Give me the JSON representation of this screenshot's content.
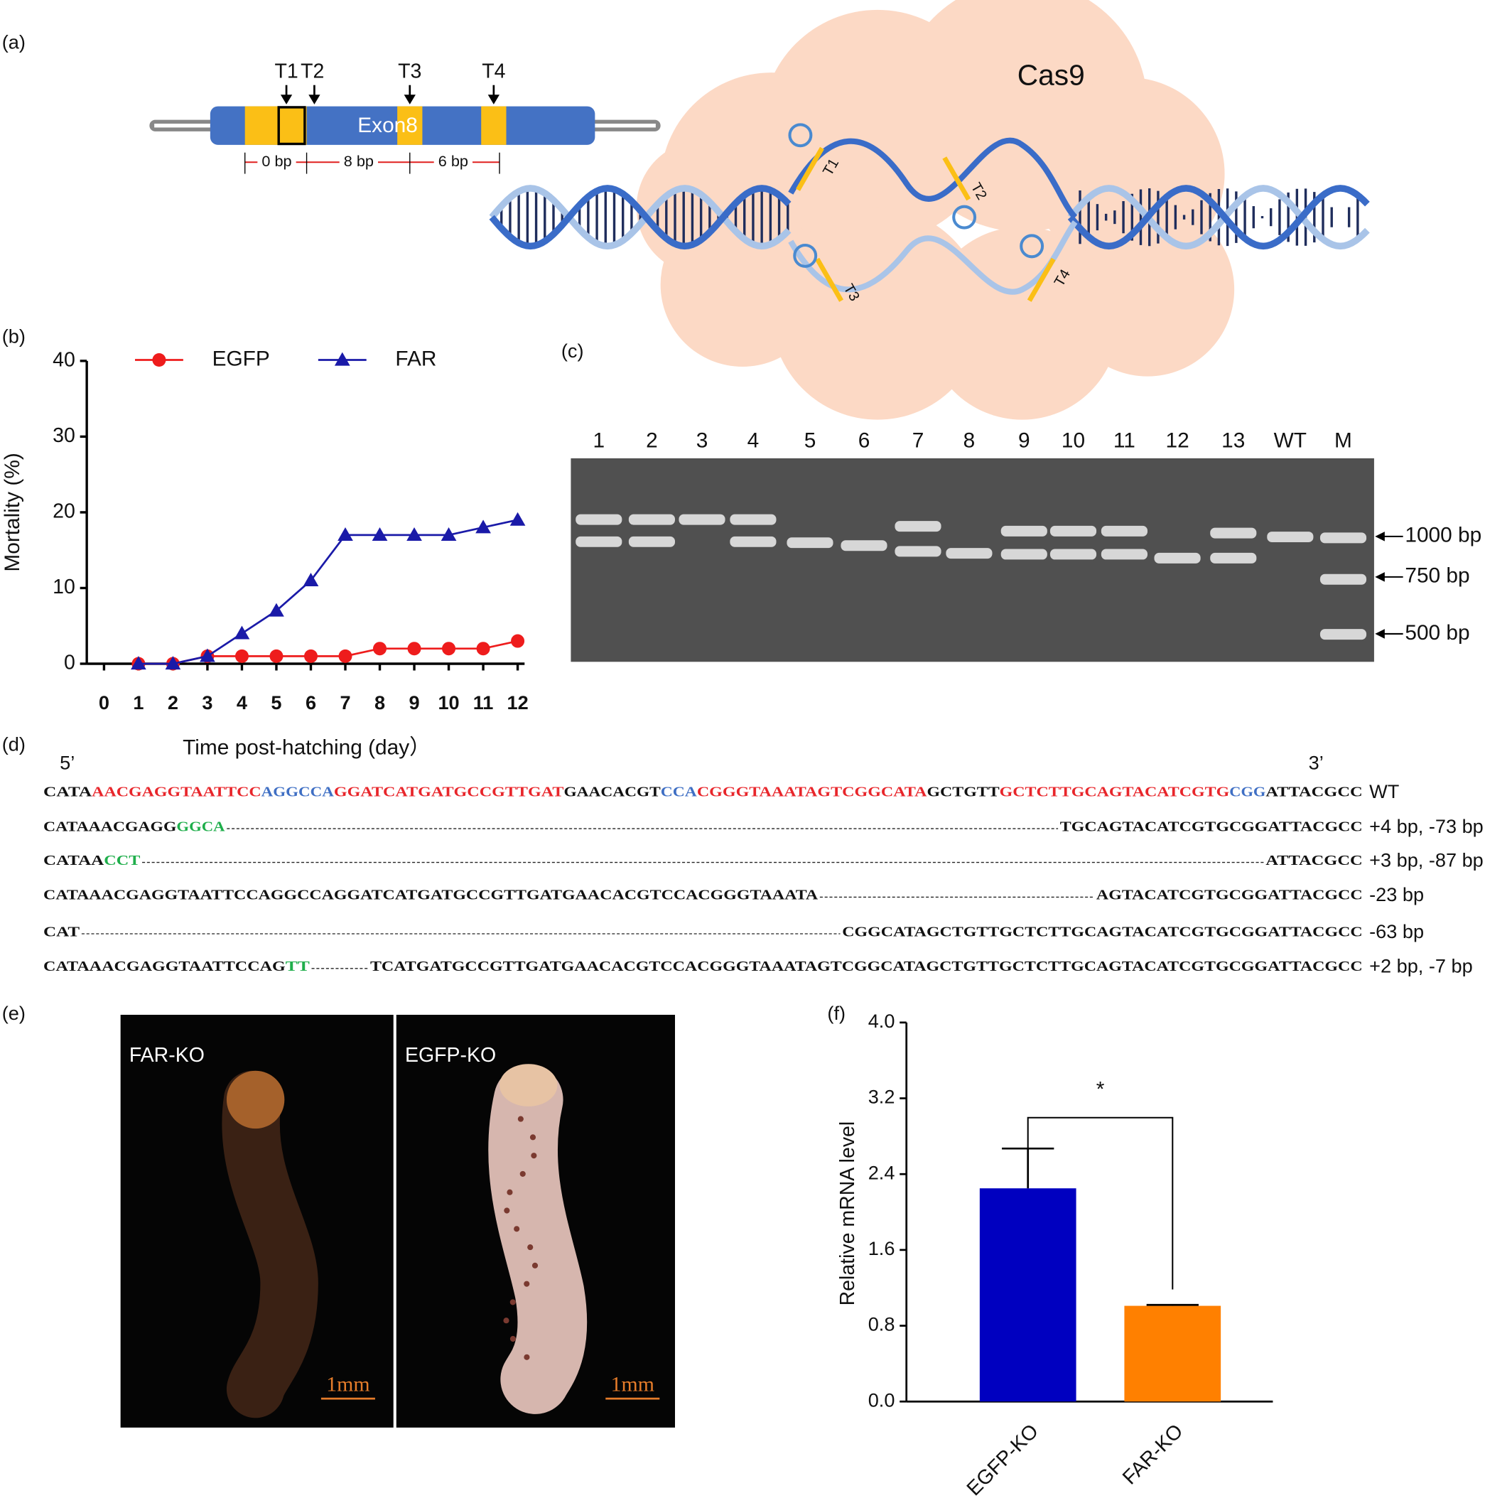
{
  "panel_labels": [
    "(a)",
    "(b)",
    "(c)",
    "(d)",
    "(e)",
    "(f)"
  ],
  "diagram": {
    "targets": [
      "T1",
      "T2",
      "T3",
      "T4"
    ],
    "exon": "Exon8",
    "spacings": [
      "0 bp",
      "8 bp",
      "6 bp"
    ],
    "protein": "Cas9",
    "guides": [
      "T1",
      "T2",
      "T3",
      "T4"
    ]
  },
  "gel": {
    "lanes": [
      "1",
      "2",
      "3",
      "4",
      "5",
      "6",
      "7",
      "8",
      "9",
      "10",
      "11",
      "12",
      "13",
      "WT",
      "M"
    ],
    "markers": [
      "1000 bp",
      "750 bp",
      "500 bp"
    ]
  },
  "sequences": {
    "five_prime": "5’",
    "three_prime": "3’",
    "rows": [
      {
        "left": [
          {
            "text": "CATA",
            "color": "#111111"
          },
          {
            "text": "AACGAGGTAATTCC",
            "color": "#e8262b"
          },
          {
            "text": "AGGCCA",
            "color": "#3f6fc4"
          },
          {
            "text": "GGATCATGATGCCGTTGAT",
            "color": "#e8262b"
          },
          {
            "text": "GAACACGT",
            "color": "#111111"
          },
          {
            "text": "CCA",
            "color": "#3f6fc4"
          },
          {
            "text": "CGGGTAAATAGTCGGCATA",
            "color": "#e8262b"
          },
          {
            "text": "GCTGTT",
            "color": "#111111"
          },
          {
            "text": "GCTCTTGCAGTACATCGTG",
            "color": "#e8262b"
          },
          {
            "text": "CGG",
            "color": "#3f6fc4"
          },
          {
            "text": "ATTACGCC",
            "color": "#111111"
          }
        ],
        "label": "WT"
      },
      {
        "left": [
          {
            "text": "CATAAACGAGG",
            "color": "#111111"
          },
          {
            "text": "GGCA",
            "color": "#1fae4b"
          }
        ],
        "right": [
          {
            "text": "TGCAGTACATCGTGCGGATTACGCC",
            "color": "#111111"
          }
        ],
        "label": "+4 bp, -73 bp"
      },
      {
        "left": [
          {
            "text": "CATAA",
            "color": "#111111"
          },
          {
            "text": "CCT",
            "color": "#1fae4b"
          }
        ],
        "right": [
          {
            "text": "ATTACGCC",
            "color": "#111111"
          }
        ],
        "label": "+3 bp, -87 bp"
      },
      {
        "left": [
          {
            "text": "CATAAACGAGGTAATTCCAGGCCAGGATCATGATGCCGTTGATGAACACGTCCACGGGTAAATA",
            "color": "#111111"
          }
        ],
        "right": [
          {
            "text": "AGTACATCGTGCGGATTACGCC",
            "color": "#111111"
          }
        ],
        "label": "-23 bp"
      },
      {
        "left": [
          {
            "text": "CAT",
            "color": "#111111"
          }
        ],
        "right": [
          {
            "text": "CGGCATAGCTGTTGCTCTTGCAGTACATCGTGCGGATTACGCC",
            "color": "#111111"
          }
        ],
        "label": "-63 bp"
      },
      {
        "left": [
          {
            "text": "CATAAACGAGGTAATTCCAG",
            "color": "#111111"
          },
          {
            "text": "TT",
            "color": "#1fae4b"
          }
        ],
        "right": [
          {
            "text": "TCATGATGCCGTTGATGAACACGTCCACGGGTAAATAGTCGGCATAGCTGTTGCTCTTGCAGTACATCGTGCGGATTACGCC",
            "color": "#111111"
          }
        ],
        "label": "+2 bp, -7 bp"
      }
    ]
  },
  "photos": {
    "labels": [
      "FAR-KO",
      "EGFP-KO"
    ],
    "scale": [
      "1mm",
      "1mm"
    ]
  },
  "chart_data": [
    {
      "type": "line",
      "x": [
        1,
        2,
        3,
        4,
        5,
        6,
        7,
        8,
        9,
        10,
        11,
        12
      ],
      "series": [
        {
          "name": "EGFP",
          "color": "#ee1c1c",
          "marker": "circle",
          "values": [
            0,
            0,
            1,
            1,
            1,
            1,
            1,
            2,
            2,
            2,
            2,
            3
          ]
        },
        {
          "name": "FAR",
          "color": "#1a1aa8",
          "marker": "triangle",
          "values": [
            0,
            0,
            1,
            4,
            7,
            11,
            17,
            17,
            17,
            17,
            18,
            19
          ]
        }
      ],
      "xlim": [
        -0.5,
        12.2
      ],
      "xticks": [
        0,
        1,
        2,
        3,
        4,
        5,
        6,
        7,
        8,
        9,
        10,
        11,
        12
      ],
      "ylim": [
        0,
        40
      ],
      "yticks": [
        0,
        10,
        20,
        30,
        40
      ],
      "xlabel": "Time post-hatching (day）",
      "ylabel": "Mortality (%)",
      "legend": "top"
    },
    {
      "type": "bar",
      "categories": [
        "EGFP-KO",
        "FAR-KO"
      ],
      "values": [
        2.25,
        1.01
      ],
      "errors": [
        0.42,
        0.01
      ],
      "colors": [
        "#0000c0",
        "#ff8000"
      ],
      "ylim": [
        0,
        4
      ],
      "yticks": [
        {
          "value": 0,
          "label": "0.0"
        },
        0.8,
        1.6,
        2.4,
        3.2,
        {
          "value": 4,
          "label": "4.0"
        }
      ],
      "ylabel": "Relative mRNA level",
      "annotation": "*"
    }
  ]
}
